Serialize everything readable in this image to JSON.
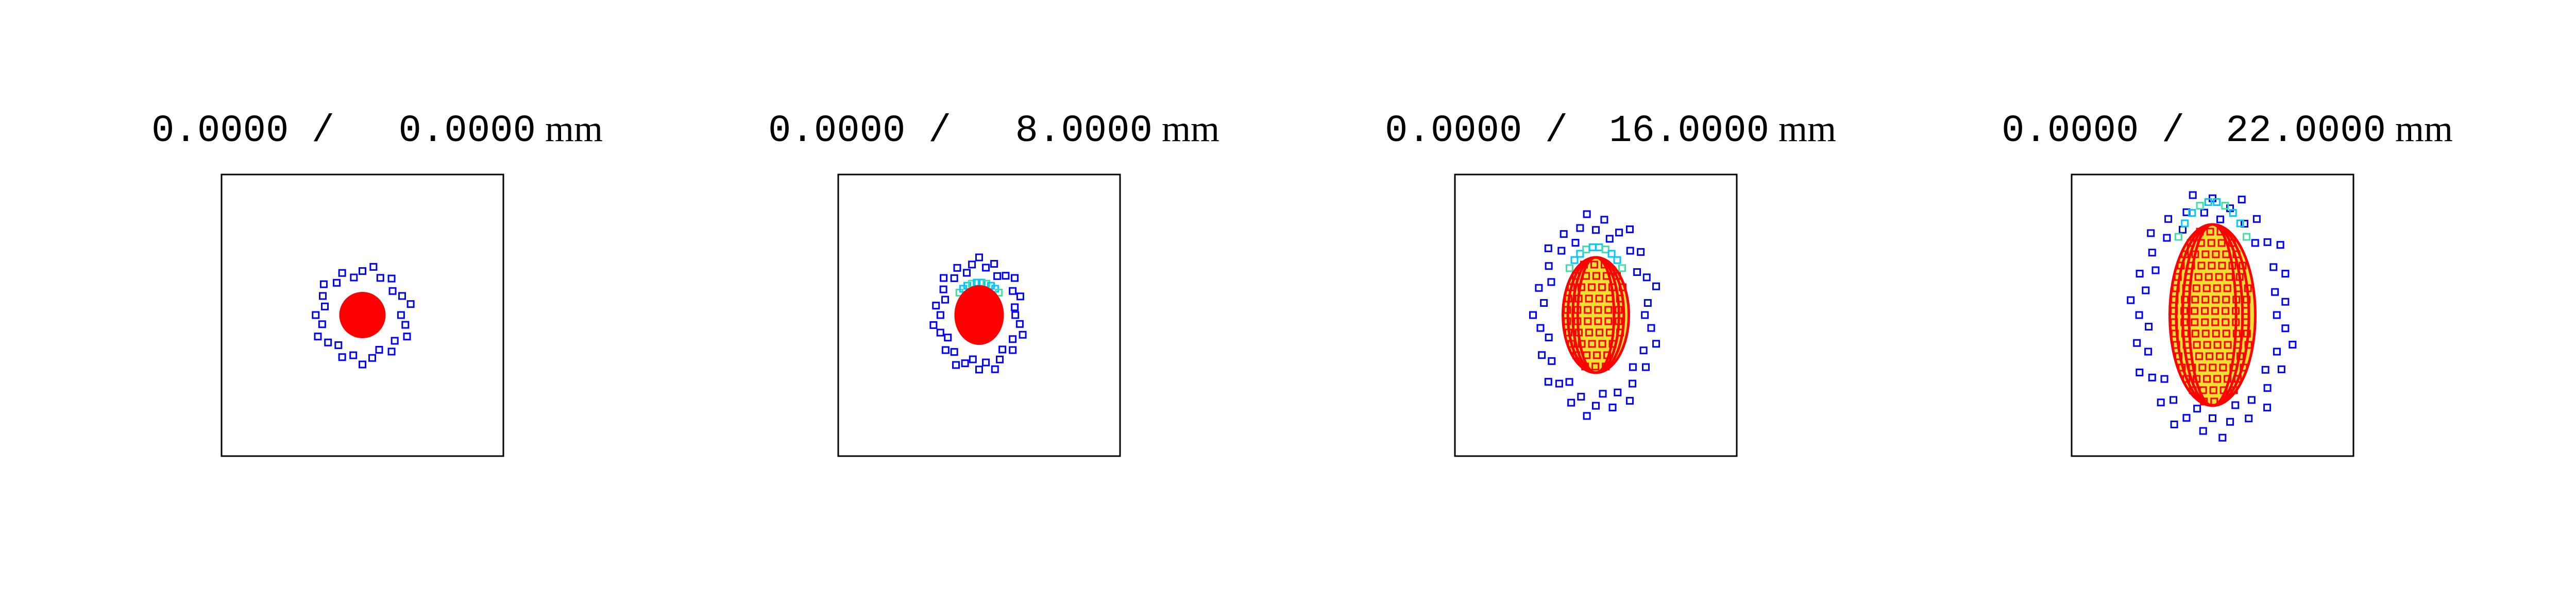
{
  "panels": [
    {
      "field": "0.0000 /",
      "position": "0.0000",
      "unit": "mm"
    },
    {
      "field": "0.0000 /",
      "position": "8.0000",
      "unit": "mm"
    },
    {
      "field": "0.0000 /",
      "position": "16.0000",
      "unit": "mm"
    },
    {
      "field": "0.0000 /",
      "position": "22.0000",
      "unit": "mm"
    }
  ]
}
